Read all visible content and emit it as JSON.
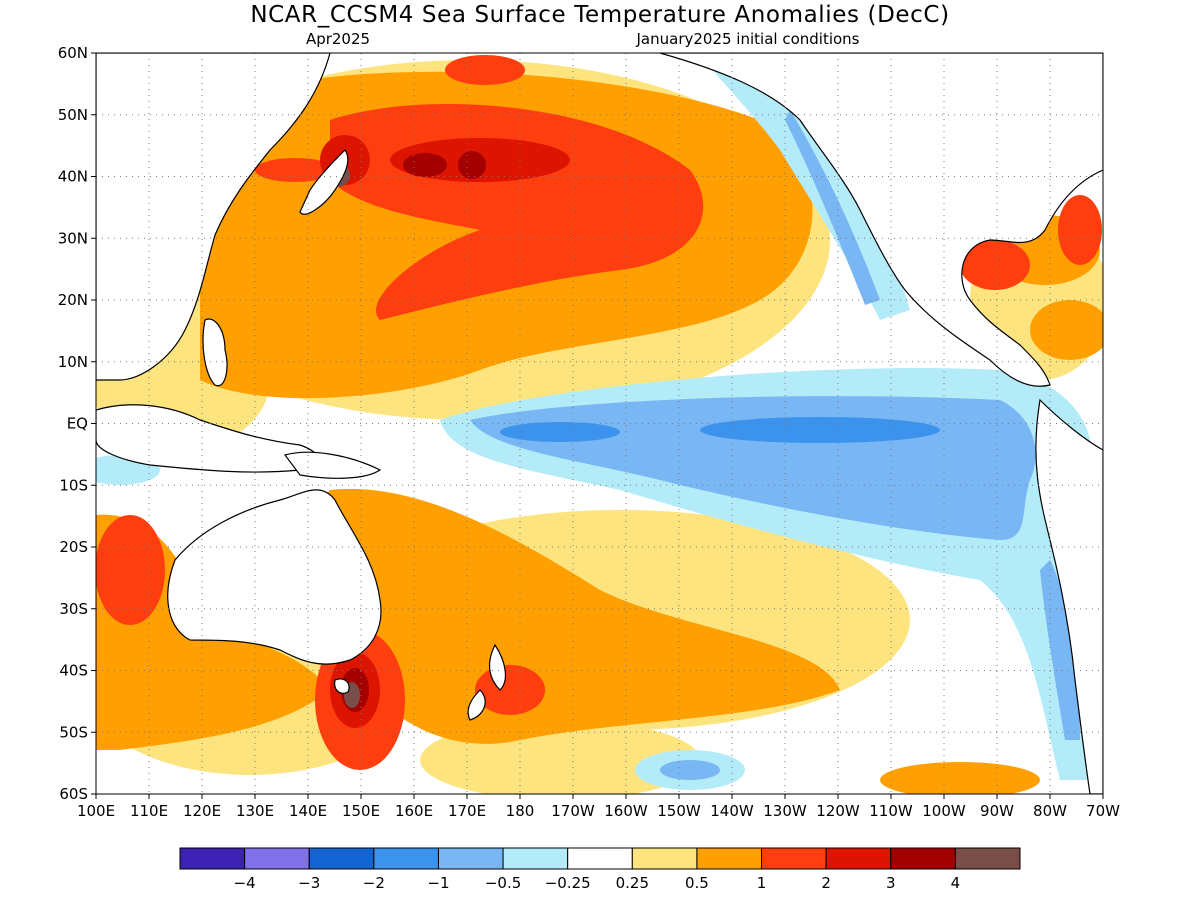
{
  "title": "NCAR_CCSM4 Sea Surface Temperature Anomalies (DecC)",
  "valid_month": "Apr2025",
  "initial_conditions": "January2025 initial conditions",
  "lat_labels": [
    "60N",
    "50N",
    "40N",
    "30N",
    "20N",
    "10N",
    "EQ",
    "10S",
    "20S",
    "30S",
    "40S",
    "50S",
    "60S"
  ],
  "lon_labels": [
    "100E",
    "110E",
    "120E",
    "130E",
    "140E",
    "150E",
    "160E",
    "170E",
    "180",
    "170W",
    "160W",
    "150W",
    "140W",
    "130W",
    "120W",
    "110W",
    "100W",
    "90W",
    "80W",
    "70W"
  ],
  "colorbar": {
    "colors": [
      "#3b22b4",
      "#8070ea",
      "#1164d2",
      "#3c93ee",
      "#78b6f4",
      "#b3ecf8",
      "#ffffff",
      "#fee47e",
      "#ffa000",
      "#ff3e10",
      "#dc1400",
      "#a50000",
      "#7a4e48"
    ],
    "labels": [
      "−4",
      "−3",
      "−2",
      "−1",
      "−0.5",
      "−0.25",
      "0.25",
      "0.5",
      "1",
      "2",
      "3",
      "4"
    ]
  },
  "palette": {
    "land": "#ffffff",
    "coast": "#000000"
  }
}
